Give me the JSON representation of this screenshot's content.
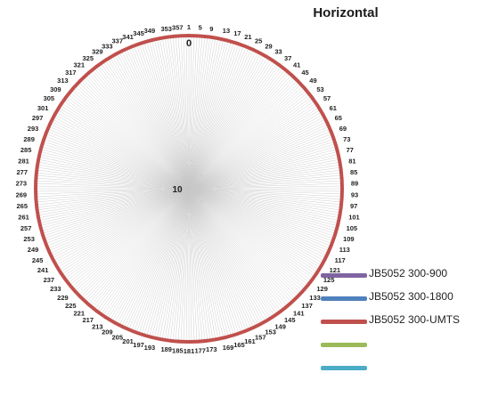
{
  "chart_data": {
    "type": "radar",
    "title": "Horizontal",
    "angle_start_label": "1",
    "angle_step": 4,
    "angle_labels": [
      "1",
      "5",
      "9",
      "13",
      "17",
      "21",
      "25",
      "29",
      "33",
      "37",
      "41",
      "45",
      "49",
      "53",
      "57",
      "61",
      "65",
      "69",
      "73",
      "77",
      "81",
      "85",
      "89",
      "93",
      "97",
      "101",
      "105",
      "109",
      "113",
      "117",
      "121",
      "125",
      "129",
      "133",
      "137",
      "141",
      "145",
      "149",
      "153",
      "157",
      "161",
      "165",
      "169",
      "173",
      "177",
      "181",
      "185",
      "189",
      "193",
      "197",
      "201",
      "205",
      "209",
      "213",
      "217",
      "221",
      "225",
      "229",
      "233",
      "237",
      "241",
      "245",
      "249",
      "253",
      "257",
      "261",
      "265",
      "269",
      "273",
      "277",
      "281",
      "285",
      "289",
      "293",
      "297",
      "301",
      "305",
      "309",
      "313",
      "317",
      "321",
      "325",
      "329",
      "333",
      "337",
      "341",
      "345",
      "349",
      "353",
      "357"
    ],
    "radial_ticks": [
      "0",
      "10"
    ],
    "rlim": [
      -10,
      0
    ],
    "series": [
      {
        "name": "JB5052 300-900",
        "color": "#8064a2",
        "value": 0
      },
      {
        "name": "JB5052 300-1800",
        "color": "#4f81bd",
        "value": 0
      },
      {
        "name": "JB5052 300-UMTS",
        "color": "#c0504d",
        "value": 0
      },
      {
        "name": "",
        "color": "#9bbb59",
        "value": null
      },
      {
        "name": "",
        "color": "#4bacc6",
        "value": null
      }
    ],
    "grid": true,
    "legend_position": "bottom-right"
  }
}
